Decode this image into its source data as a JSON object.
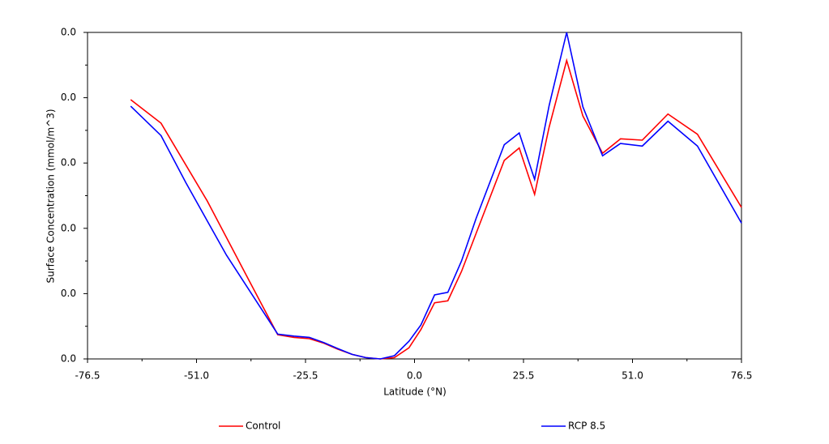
{
  "chart_data": {
    "type": "line",
    "xlabel": "Latitude (°N)",
    "ylabel": "Surface Concentration (mmol/m^3)",
    "xlim": [
      -76.5,
      76.5
    ],
    "xticks": [
      -76.5,
      {
        "value": -51,
        "label": "-51.0"
      },
      -25.5,
      {
        "value": 0,
        "label": "0.0"
      },
      25.5,
      {
        "value": 51,
        "label": "51.0"
      },
      76.5
    ],
    "ylim": [
      0,
      0.05
    ],
    "yticks": [
      {
        "value": 0,
        "label": "0.0"
      },
      {
        "value": 0.01,
        "label": "0.0"
      },
      {
        "value": 0.02,
        "label": "0.0"
      },
      {
        "value": 0.03,
        "label": "0.0"
      },
      {
        "value": 0.04,
        "label": "0.0"
      },
      {
        "value": 0.05,
        "label": "0.0"
      }
    ],
    "legend": "bottom",
    "series": [
      {
        "name": "Control",
        "color": "#ff0000",
        "x": [
          -66.4,
          -59.3,
          -48.5,
          -39.1,
          -32.0,
          -28.2,
          -24.6,
          -21.2,
          -18.0,
          -14.6,
          -11.4,
          -8.0,
          -4.7,
          -1.3,
          1.5,
          4.7,
          7.8,
          11.0,
          14.4,
          21.0,
          24.5,
          28.1,
          31.5,
          35.6,
          39.4,
          44.0,
          48.2,
          53.3,
          59.3,
          66.2,
          76.5
        ],
        "values": [
          0.0397,
          0.0361,
          0.0242,
          0.0125,
          0.0037,
          0.0033,
          0.0031,
          0.0024,
          0.0015,
          0.0007,
          0.0002,
          0,
          0.0002,
          0.0017,
          0.0045,
          0.0086,
          0.0089,
          0.0134,
          0.0192,
          0.0304,
          0.0323,
          0.0252,
          0.0355,
          0.0457,
          0.0372,
          0.0315,
          0.0337,
          0.0335,
          0.0375,
          0.0344,
          0.0232
        ]
      },
      {
        "name": "RCP 8.5",
        "color": "#0000ff",
        "x": [
          -66.4,
          -59.3,
          -53.5,
          -44.0,
          -32.0,
          -28.2,
          -24.6,
          -21.2,
          -18.0,
          -14.6,
          -11.4,
          -8.0,
          -4.7,
          -1.3,
          1.5,
          4.7,
          7.8,
          11.0,
          14.4,
          21.0,
          24.5,
          28.1,
          31.5,
          35.6,
          39.4,
          44.0,
          48.2,
          53.3,
          59.3,
          66.2,
          76.5
        ],
        "values": [
          0.0387,
          0.0342,
          0.027,
          0.0159,
          0.0038,
          0.0035,
          0.0033,
          0.0025,
          0.0016,
          0.0007,
          0.0002,
          0,
          0.0005,
          0.0027,
          0.0052,
          0.0098,
          0.0102,
          0.015,
          0.0215,
          0.0328,
          0.0346,
          0.0275,
          0.0388,
          0.05,
          0.0386,
          0.0311,
          0.033,
          0.0326,
          0.0364,
          0.0326,
          0.0208
        ]
      }
    ]
  }
}
